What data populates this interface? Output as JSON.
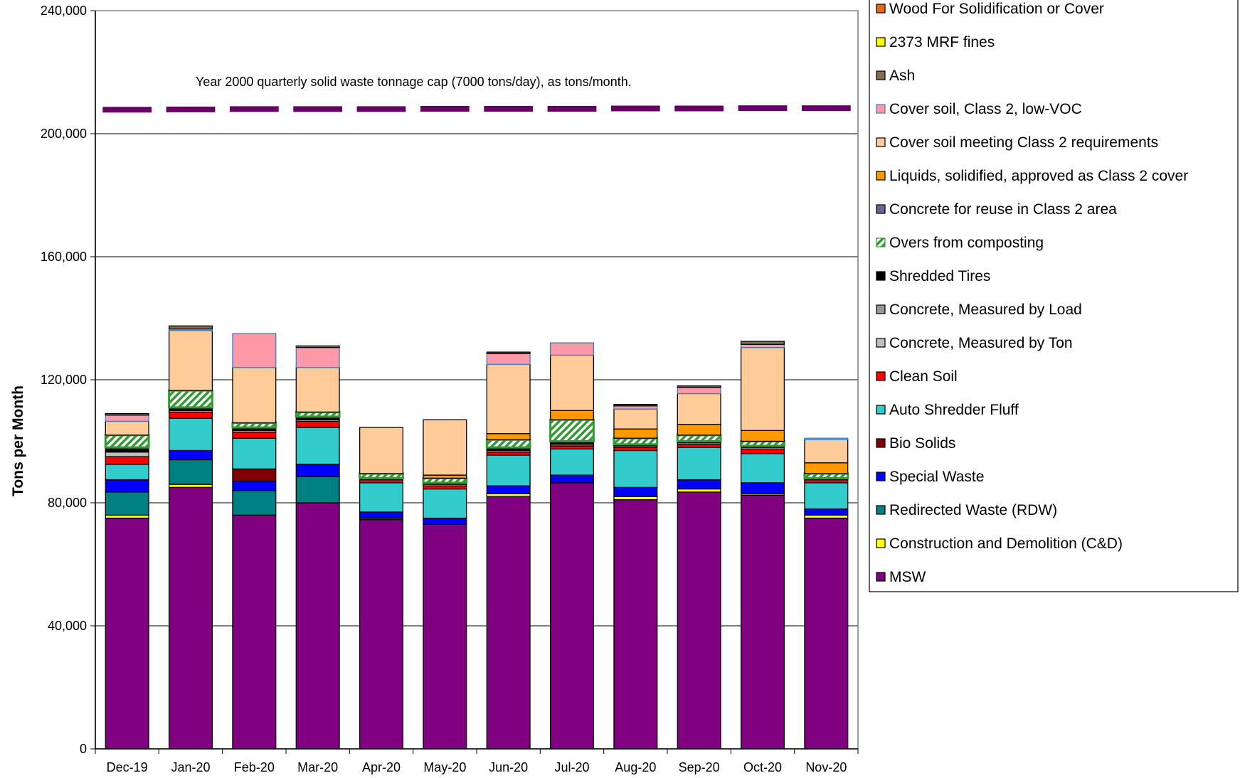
{
  "chart_data": {
    "type": "bar",
    "stacked": true,
    "ylabel": "Tons per Month",
    "ylim": [
      0,
      240000
    ],
    "yticks": [
      "0",
      "40,000",
      "80,000",
      "120,000",
      "160,000",
      "200,000",
      "240,000"
    ],
    "ytick_values": [
      0,
      40000,
      80000,
      120000,
      160000,
      200000,
      240000
    ],
    "grid": true,
    "legend_position": "right",
    "categories": [
      "Dec-19",
      "Jan-20",
      "Feb-20",
      "Mar-20",
      "Apr-20",
      "May-20",
      "Jun-20",
      "Jul-20",
      "Aug-20",
      "Sep-20",
      "Oct-20",
      "Nov-20"
    ],
    "series": [
      {
        "name": "MSW",
        "color": "#800080",
        "values": [
          75000,
          85000,
          76000,
          80000,
          74500,
          73000,
          82000,
          86500,
          81000,
          83500,
          82500,
          75000
        ]
      },
      {
        "name": "Construction and Demolition (C&D)",
        "color": "#FFFF00",
        "values": [
          1000,
          1000,
          0,
          0,
          0,
          0,
          1000,
          0,
          1000,
          1000,
          500,
          1000
        ]
      },
      {
        "name": "Redirected Waste (RDW)",
        "color": "#008080",
        "values": [
          7500,
          8000,
          8000,
          8500,
          500,
          0,
          0,
          0,
          0,
          0,
          0,
          0
        ]
      },
      {
        "name": "Special Waste",
        "color": "#0000FF",
        "values": [
          4000,
          3000,
          3000,
          4000,
          2000,
          2000,
          2500,
          2500,
          3000,
          3000,
          3500,
          2000
        ]
      },
      {
        "name": "Bio Solids",
        "color": "#800000",
        "values": [
          0,
          0,
          4000,
          0,
          0,
          0,
          0,
          0,
          0,
          0,
          0,
          0
        ]
      },
      {
        "name": "Auto Shredder Fluff",
        "color": "#33CCCC",
        "values": [
          5000,
          10500,
          10000,
          12000,
          9500,
          9500,
          10000,
          8500,
          12000,
          10500,
          9500,
          8500
        ]
      },
      {
        "name": "Clean Soil",
        "color": "#FF0000",
        "values": [
          2500,
          2000,
          2000,
          2000,
          1000,
          1000,
          1000,
          1000,
          1000,
          1000,
          1500,
          1000
        ]
      },
      {
        "name": "Concrete, Measured by Ton",
        "color": "#C0C0C0",
        "values": [
          1500,
          500,
          500,
          500,
          500,
          500,
          500,
          500,
          500,
          500,
          500,
          500
        ]
      },
      {
        "name": "Concrete, Measured by Load",
        "color": "#969696",
        "values": [
          0,
          0,
          0,
          0,
          0,
          0,
          0,
          0,
          0,
          0,
          0,
          0
        ]
      },
      {
        "name": "Shredded Tires",
        "color": "#000000",
        "values": [
          1500,
          1000,
          1000,
          1000,
          0,
          500,
          1000,
          1000,
          500,
          500,
          500,
          0
        ]
      },
      {
        "name": "Concrete for reuse in Class 2 area",
        "color": "#666699",
        "values": [
          0,
          0,
          0,
          0,
          0,
          0,
          0,
          0,
          0,
          0,
          0,
          0
        ]
      },
      {
        "name": "Overs from composting",
        "color": "#339933",
        "pattern": true,
        "values": [
          4000,
          5500,
          1500,
          1500,
          1500,
          1500,
          2500,
          7000,
          2000,
          2000,
          1500,
          1500
        ]
      },
      {
        "name": "Liquids, solidified, approved as Class 2 cover",
        "color": "#FF9900",
        "values": [
          0,
          0,
          0,
          0,
          0,
          1000,
          2000,
          3000,
          3000,
          3500,
          3500,
          3500
        ]
      },
      {
        "name": "Cover soil meeting Class 2 requirements",
        "color": "#FFCC99",
        "values": [
          4500,
          19500,
          18000,
          14500,
          15000,
          18000,
          22500,
          18000,
          6500,
          10000,
          27000,
          7500
        ]
      },
      {
        "name": "Cover soil, Class 2, low-VOC",
        "color": "#FF99A8",
        "values": [
          2000,
          500,
          11000,
          6500,
          0,
          0,
          3500,
          4000,
          1000,
          2000,
          1000,
          500
        ]
      },
      {
        "name": "Ash",
        "color": "#807050",
        "values": [
          500,
          1000,
          0,
          0,
          0,
          0,
          500,
          0,
          500,
          500,
          1000,
          0
        ]
      },
      {
        "name": "2373 MRF fines",
        "color": "#FFFF00",
        "values": [
          0,
          0,
          0,
          0,
          0,
          0,
          0,
          0,
          0,
          0,
          0,
          0
        ]
      },
      {
        "name": "Wood For Solidification or Cover",
        "color": "#E46C0A",
        "values": [
          0,
          0,
          0,
          500,
          0,
          0,
          0,
          0,
          0,
          0,
          0,
          0
        ]
      }
    ],
    "cap_line": {
      "label": "Year 2000 quarterly solid waste tonnage cap (7000 tons/day), as tons/month.",
      "color": "#660066",
      "values": [
        207800,
        207900,
        208000,
        208000,
        208000,
        208100,
        208100,
        208100,
        208200,
        208200,
        208300,
        208300
      ]
    },
    "legend_order": [
      "Wood For Solidification or Cover",
      "2373 MRF fines",
      "Ash",
      "Cover soil, Class 2, low-VOC",
      "Cover soil meeting Class 2 requirements",
      "Liquids, solidified, approved as Class 2 cover",
      "Concrete for reuse in Class 2 area",
      "Overs from composting",
      "Shredded Tires",
      "Concrete, Measured by Load",
      "Concrete, Measured by Ton",
      "Clean Soil",
      "Auto Shredder Fluff",
      "Bio Solids",
      "Special Waste",
      "Redirected Waste (RDW)",
      "Construction and Demolition (C&D)",
      "MSW"
    ]
  }
}
